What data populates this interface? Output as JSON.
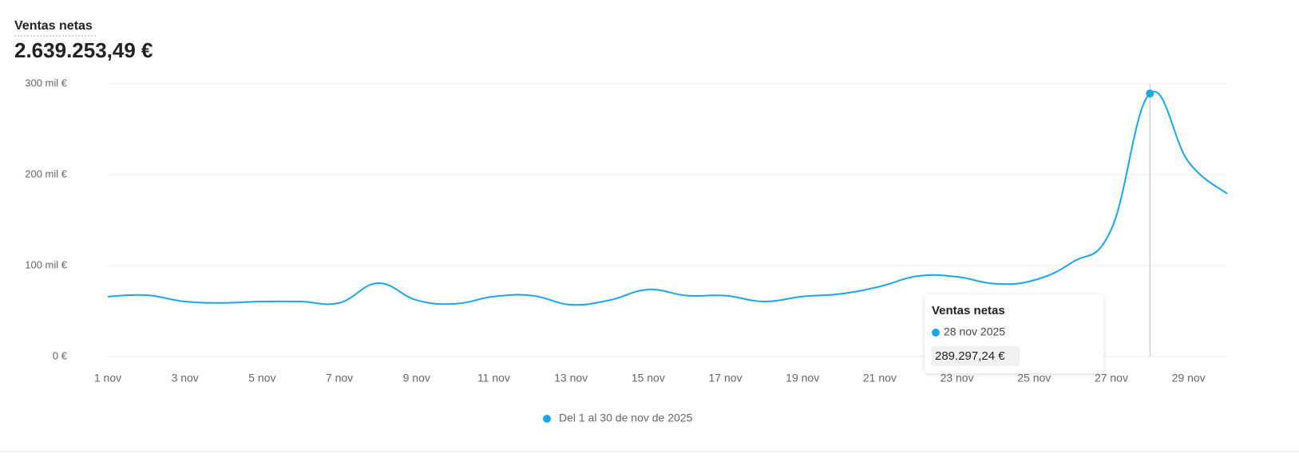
{
  "chart_data": {
    "type": "line",
    "title": "Ventas netas",
    "subtitle": "2.639.253,49 €",
    "categories": [
      "1 nov",
      null,
      "3 nov",
      null,
      "5 nov",
      null,
      "7 nov",
      null,
      "9 nov",
      null,
      "11 nov",
      null,
      "13 nov",
      null,
      "15 nov",
      null,
      "17 nov",
      null,
      "19 nov",
      null,
      "21 nov",
      null,
      "23 nov",
      null,
      "25 nov",
      null,
      "27 nov",
      null,
      "29 nov",
      null
    ],
    "series": [
      {
        "name": "Del 1 al 30 de nov de 2025",
        "color": "#1ba6ea",
        "values": [
          66000,
          67500,
          60500,
          59000,
          60500,
          60500,
          59000,
          80700,
          62000,
          58000,
          66000,
          67000,
          57000,
          62000,
          73700,
          67000,
          67000,
          60500,
          66000,
          69000,
          77000,
          88600,
          87700,
          80000,
          84000,
          104000,
          140000,
          289297.24,
          214000,
          179000
        ]
      }
    ],
    "ylim": [
      0,
      300000
    ],
    "yticks": [
      {
        "value": 0,
        "label": "0 €"
      },
      {
        "value": 100000,
        "label": "100 mil €"
      },
      {
        "value": 200000,
        "label": "200 mil €"
      },
      {
        "value": 300000,
        "label": "300 mil €"
      }
    ],
    "grid": true,
    "tooltip": {
      "title": "Ventas netas",
      "date": "28 nov 2025",
      "value": {
        "value": 289297.24,
        "label": "289.297,24 €"
      }
    }
  }
}
